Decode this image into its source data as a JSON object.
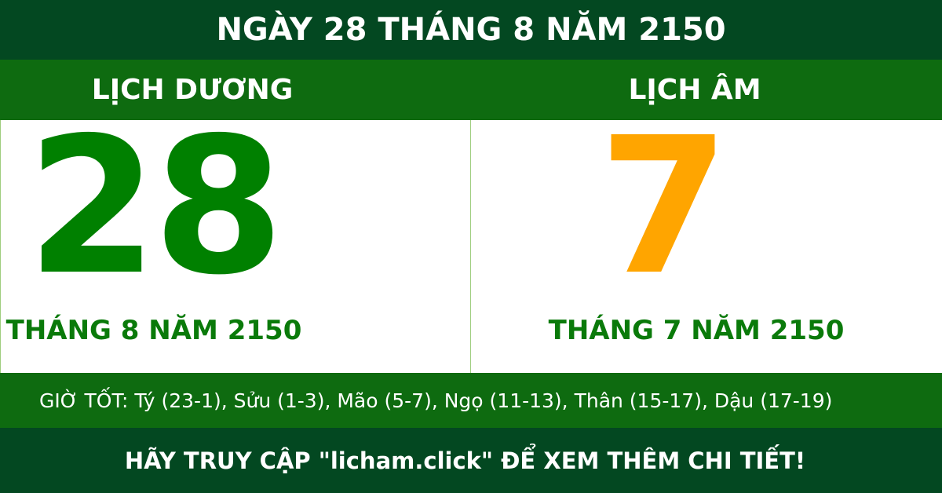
{
  "header": {
    "title": "NGÀY 28 THÁNG 8 NĂM 2150"
  },
  "solar": {
    "label": "LỊCH DƯƠNG",
    "day": "28",
    "month_year": "THÁNG 8 NĂM 2150"
  },
  "lunar": {
    "label": "LỊCH ÂM",
    "day": "7",
    "month_year": "THÁNG 7 NĂM 2150"
  },
  "good_hours": "GIỜ TỐT: Tý (23-1), Sửu (1-3), Mão (5-7), Ngọ (11-13), Thân (15-17), Dậu (17-19)",
  "footer": "HÃY TRUY CẬP \"licham.click\" ĐỂ XEM THÊM CHI TIẾT!",
  "colors": {
    "dark_green": "#034821",
    "band_green": "#0e6b10",
    "solar_number": "#008000",
    "lunar_number": "#ffa500"
  }
}
